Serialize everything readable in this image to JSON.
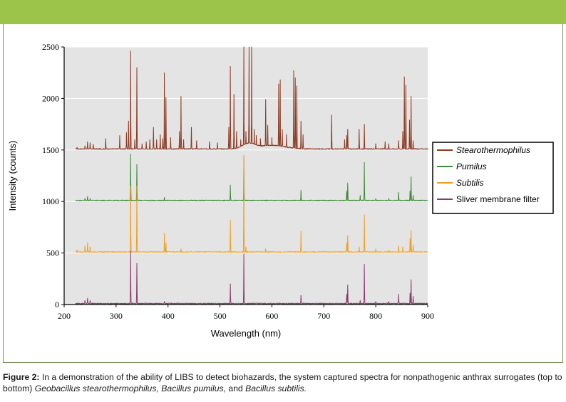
{
  "chart_data": {
    "type": "line",
    "title": "",
    "xlabel": "Wavelength (nm)",
    "ylabel": "Intensity (counts)",
    "xlim": [
      200,
      900
    ],
    "ylim": [
      0,
      2500
    ],
    "x_ticks": [
      200,
      300,
      400,
      500,
      600,
      700,
      800,
      900
    ],
    "y_ticks": [
      0,
      500,
      1000,
      1500,
      2000,
      2500
    ],
    "grid": "horizontal at 500 intervals",
    "legend_position": "right",
    "series": [
      {
        "name": "Stearothermophilus",
        "italic": true,
        "color": "#8b3a22",
        "baseline": 1510,
        "broad": [
          [
            555,
            1560,
            12
          ],
          [
            600,
            1545,
            25
          ]
        ],
        "peaks": [
          [
            225,
            1525
          ],
          [
            240,
            1540
          ],
          [
            245,
            1580
          ],
          [
            250,
            1570
          ],
          [
            256,
            1555
          ],
          [
            280,
            1610
          ],
          [
            307,
            1640
          ],
          [
            320,
            1670
          ],
          [
            324,
            1780
          ],
          [
            328,
            2460
          ],
          [
            336,
            1600
          ],
          [
            340,
            2300
          ],
          [
            350,
            1560
          ],
          [
            358,
            1580
          ],
          [
            365,
            1600
          ],
          [
            372,
            1720
          ],
          [
            378,
            1600
          ],
          [
            385,
            1650
          ],
          [
            390,
            1610
          ],
          [
            393,
            2250
          ],
          [
            396,
            2010
          ],
          [
            405,
            1620
          ],
          [
            422,
            1680
          ],
          [
            425,
            2020
          ],
          [
            430,
            1600
          ],
          [
            445,
            1720
          ],
          [
            455,
            1590
          ],
          [
            480,
            1580
          ],
          [
            495,
            1570
          ],
          [
            517,
            1720
          ],
          [
            520,
            2310
          ],
          [
            527,
            2040
          ],
          [
            532,
            1680
          ],
          [
            540,
            1600
          ],
          [
            546,
            2500
          ],
          [
            550,
            1680
          ],
          [
            556,
            2500
          ],
          [
            561,
            2500
          ],
          [
            566,
            1700
          ],
          [
            570,
            1640
          ],
          [
            578,
            1610
          ],
          [
            588,
            1990
          ],
          [
            592,
            1740
          ],
          [
            600,
            1620
          ],
          [
            613,
            2140
          ],
          [
            616,
            2180
          ],
          [
            620,
            1700
          ],
          [
            628,
            1650
          ],
          [
            642,
            2270
          ],
          [
            645,
            2200
          ],
          [
            648,
            2120
          ],
          [
            656,
            1780
          ],
          [
            660,
            1650
          ],
          [
            715,
            1840
          ],
          [
            740,
            1600
          ],
          [
            744,
            1640
          ],
          [
            746,
            1700
          ],
          [
            768,
            1700
          ],
          [
            778,
            1750
          ],
          [
            800,
            1560
          ],
          [
            818,
            1580
          ],
          [
            825,
            1560
          ],
          [
            844,
            1590
          ],
          [
            852,
            1680
          ],
          [
            855,
            2210
          ],
          [
            858,
            2130
          ],
          [
            865,
            1790
          ],
          [
            868,
            2020
          ],
          [
            872,
            1590
          ]
        ]
      },
      {
        "name": "Pumilus",
        "italic": true,
        "color": "#3f8a3a",
        "baseline": 1010,
        "broad": [],
        "peaks": [
          [
            240,
            1030
          ],
          [
            245,
            1050
          ],
          [
            250,
            1030
          ],
          [
            328,
            1460
          ],
          [
            340,
            1360
          ],
          [
            393,
            1040
          ],
          [
            520,
            1160
          ],
          [
            546,
            1430
          ],
          [
            656,
            1110
          ],
          [
            744,
            1100
          ],
          [
            746,
            1180
          ],
          [
            770,
            1060
          ],
          [
            778,
            1380
          ],
          [
            800,
            1030
          ],
          [
            825,
            1030
          ],
          [
            844,
            1090
          ],
          [
            866,
            1100
          ],
          [
            868,
            1240
          ],
          [
            872,
            1060
          ]
        ]
      },
      {
        "name": "Subtilis",
        "italic": true,
        "color": "#f0a020",
        "baseline": 510,
        "broad": [],
        "peaks": [
          [
            225,
            530
          ],
          [
            240,
            570
          ],
          [
            245,
            600
          ],
          [
            250,
            560
          ],
          [
            328,
            1150
          ],
          [
            340,
            1150
          ],
          [
            393,
            690
          ],
          [
            396,
            600
          ],
          [
            425,
            540
          ],
          [
            520,
            820
          ],
          [
            546,
            1450
          ],
          [
            550,
            560
          ],
          [
            588,
            540
          ],
          [
            656,
            710
          ],
          [
            744,
            600
          ],
          [
            746,
            670
          ],
          [
            768,
            560
          ],
          [
            778,
            870
          ],
          [
            800,
            540
          ],
          [
            825,
            530
          ],
          [
            844,
            570
          ],
          [
            852,
            560
          ],
          [
            866,
            640
          ],
          [
            868,
            720
          ],
          [
            872,
            580
          ]
        ]
      },
      {
        "name": "Sliver membrane filter",
        "italic": false,
        "color": "#8a3a6a",
        "baseline": 10,
        "broad": [],
        "peaks": [
          [
            240,
            40
          ],
          [
            245,
            60
          ],
          [
            250,
            40
          ],
          [
            328,
            520
          ],
          [
            340,
            400
          ],
          [
            393,
            30
          ],
          [
            520,
            200
          ],
          [
            546,
            490
          ],
          [
            656,
            90
          ],
          [
            744,
            100
          ],
          [
            746,
            190
          ],
          [
            770,
            40
          ],
          [
            778,
            390
          ],
          [
            800,
            30
          ],
          [
            825,
            30
          ],
          [
            844,
            100
          ],
          [
            866,
            110
          ],
          [
            868,
            240
          ],
          [
            872,
            80
          ]
        ]
      }
    ]
  },
  "caption": {
    "lead": "Figure 2:",
    "text": " In a demonstration of the ability of LIBS to detect biohazards, the system captured spectra for nonpathogenic anthrax surrogates (top to bottom) ",
    "italic1": "Geobacillus stearothermophilus, Bacillus pumilus,",
    "mid": " and ",
    "italic2": "Bacillus subtilis."
  }
}
